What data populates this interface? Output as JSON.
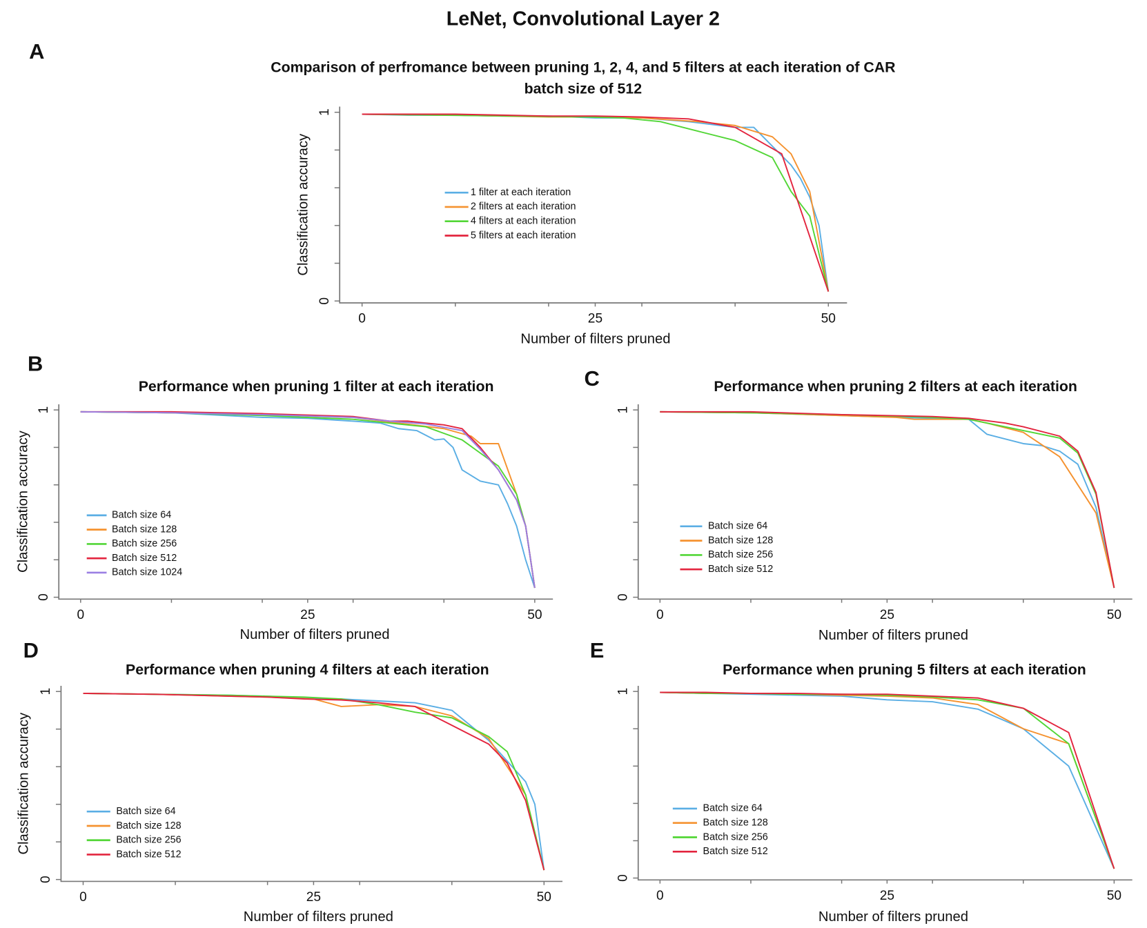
{
  "title": "LeNet, Convolutional Layer 2",
  "chart_data": [
    {
      "type": "line",
      "panel": "A",
      "title": "Comparison of perfromance between pruning 1, 2, 4, and 5 filters at each iteration of CAR",
      "subtitle": "batch size of 512",
      "xlabel": "Number of filters pruned",
      "ylabel": "Classification accuracy",
      "xlim": [
        -2.4,
        52
      ],
      "ylim": [
        -0.01,
        1.03
      ],
      "xticks": [
        0,
        25,
        50
      ],
      "yticks": [
        0,
        1
      ],
      "xticks_minor": [
        10,
        20,
        30,
        40
      ],
      "yticks_minor": [
        0.2,
        0.4,
        0.6,
        0.8
      ],
      "series": [
        {
          "name": "1 filter at each iteration",
          "color": "#5aaee4",
          "x": [
            0,
            5,
            10,
            15,
            20,
            25,
            30,
            35,
            40,
            42,
            44,
            46,
            47,
            48,
            49,
            50
          ],
          "values": [
            0.99,
            0.985,
            0.985,
            0.98,
            0.98,
            0.97,
            0.97,
            0.95,
            0.92,
            0.92,
            0.82,
            0.72,
            0.65,
            0.55,
            0.4,
            0.05
          ]
        },
        {
          "name": "2 filters at each iteration",
          "color": "#f5922f",
          "x": [
            0,
            10,
            20,
            26,
            30,
            36,
            40,
            44,
            46,
            48,
            50
          ],
          "values": [
            0.99,
            0.985,
            0.975,
            0.975,
            0.97,
            0.95,
            0.93,
            0.87,
            0.78,
            0.58,
            0.05
          ]
        },
        {
          "name": "4 filters at each iteration",
          "color": "#52d636",
          "x": [
            0,
            8,
            16,
            24,
            28,
            32,
            36,
            40,
            44,
            46,
            48,
            50
          ],
          "values": [
            0.99,
            0.985,
            0.98,
            0.975,
            0.97,
            0.95,
            0.9,
            0.85,
            0.76,
            0.58,
            0.45,
            0.05
          ]
        },
        {
          "name": "5 filters at each iteration",
          "color": "#e3243e",
          "x": [
            0,
            5,
            10,
            15,
            20,
            25,
            30,
            35,
            40,
            45,
            50
          ],
          "values": [
            0.99,
            0.99,
            0.99,
            0.985,
            0.98,
            0.98,
            0.975,
            0.965,
            0.92,
            0.78,
            0.05
          ]
        }
      ]
    },
    {
      "type": "line",
      "panel": "B",
      "title": "Performance when pruning 1 filter at each iteration",
      "xlabel": "Number of filters pruned",
      "ylabel": "Classification accuracy",
      "xlim": [
        -2.4,
        52
      ],
      "ylim": [
        -0.01,
        1.03
      ],
      "xticks": [
        0,
        25,
        50
      ],
      "yticks": [
        0,
        1
      ],
      "xticks_minor": [
        10,
        20,
        30,
        40
      ],
      "yticks_minor": [
        0.2,
        0.4,
        0.6,
        0.8
      ],
      "series": [
        {
          "name": "Batch size 64",
          "color": "#5aaee4",
          "x": [
            0,
            10,
            20,
            25,
            30,
            33,
            35,
            37,
            39,
            40,
            41,
            42,
            44,
            46,
            47,
            48,
            49,
            50
          ],
          "values": [
            0.99,
            0.985,
            0.96,
            0.955,
            0.94,
            0.93,
            0.9,
            0.89,
            0.84,
            0.845,
            0.8,
            0.68,
            0.62,
            0.6,
            0.5,
            0.38,
            0.2,
            0.05
          ]
        },
        {
          "name": "Batch size 128",
          "color": "#f5922f",
          "x": [
            0,
            10,
            20,
            30,
            35,
            40,
            43,
            44,
            45,
            46,
            48,
            49,
            50
          ],
          "values": [
            0.99,
            0.985,
            0.975,
            0.96,
            0.93,
            0.9,
            0.86,
            0.82,
            0.82,
            0.82,
            0.55,
            0.38,
            0.05
          ]
        },
        {
          "name": "Batch size 256",
          "color": "#52d636",
          "x": [
            0,
            10,
            20,
            30,
            34,
            38,
            42,
            44,
            46,
            48,
            49,
            50
          ],
          "values": [
            0.99,
            0.985,
            0.97,
            0.95,
            0.93,
            0.91,
            0.84,
            0.77,
            0.7,
            0.55,
            0.38,
            0.05
          ]
        },
        {
          "name": "Batch size 512",
          "color": "#e3243e",
          "x": [
            0,
            10,
            20,
            30,
            34,
            36,
            38,
            40,
            42,
            44,
            46,
            48,
            49,
            50
          ],
          "values": [
            0.99,
            0.99,
            0.98,
            0.965,
            0.94,
            0.94,
            0.93,
            0.92,
            0.9,
            0.8,
            0.68,
            0.52,
            0.38,
            0.05
          ]
        },
        {
          "name": "Batch size 1024",
          "color": "#9a7fe3",
          "x": [
            0,
            10,
            20,
            30,
            34,
            38,
            42,
            44,
            46,
            48,
            49,
            50
          ],
          "values": [
            0.99,
            0.985,
            0.975,
            0.96,
            0.94,
            0.925,
            0.89,
            0.79,
            0.68,
            0.52,
            0.38,
            0.05
          ]
        }
      ]
    },
    {
      "type": "line",
      "panel": "C",
      "title": "Performance when pruning 2 filters at each iteration",
      "xlabel": "Number of filters pruned",
      "xlim": [
        -2.4,
        52
      ],
      "ylim": [
        -0.01,
        1.03
      ],
      "xticks": [
        0,
        25,
        50
      ],
      "yticks": [
        0,
        1
      ],
      "xticks_minor": [
        10,
        20,
        30,
        40
      ],
      "yticks_minor": [
        0.2,
        0.4,
        0.6,
        0.8
      ],
      "series": [
        {
          "name": "Batch size 64",
          "color": "#5aaee4",
          "x": [
            0,
            10,
            20,
            30,
            34,
            36,
            40,
            42,
            44,
            46,
            48,
            50
          ],
          "values": [
            0.99,
            0.985,
            0.97,
            0.955,
            0.95,
            0.87,
            0.82,
            0.81,
            0.78,
            0.71,
            0.48,
            0.05
          ]
        },
        {
          "name": "Batch size 128",
          "color": "#f5922f",
          "x": [
            0,
            10,
            20,
            26,
            28,
            34,
            36,
            40,
            44,
            48,
            50
          ],
          "values": [
            0.99,
            0.985,
            0.97,
            0.96,
            0.95,
            0.95,
            0.93,
            0.88,
            0.75,
            0.45,
            0.05
          ]
        },
        {
          "name": "Batch size 256",
          "color": "#52d636",
          "x": [
            0,
            10,
            20,
            30,
            34,
            40,
            44,
            46,
            48,
            50
          ],
          "values": [
            0.99,
            0.985,
            0.975,
            0.96,
            0.95,
            0.89,
            0.85,
            0.77,
            0.55,
            0.05
          ]
        },
        {
          "name": "Batch size 512",
          "color": "#e3243e",
          "x": [
            0,
            10,
            20,
            30,
            34,
            38,
            40,
            44,
            46,
            48,
            50
          ],
          "values": [
            0.99,
            0.99,
            0.975,
            0.965,
            0.955,
            0.93,
            0.91,
            0.86,
            0.78,
            0.56,
            0.05
          ]
        }
      ]
    },
    {
      "type": "line",
      "panel": "D",
      "title": "Performance when pruning 4 filters at each iteration",
      "xlabel": "Number of filters pruned",
      "ylabel": "Classification accuracy",
      "xlim": [
        -2.4,
        52
      ],
      "ylim": [
        -0.01,
        1.03
      ],
      "xticks": [
        0,
        25,
        50
      ],
      "yticks": [
        0,
        1
      ],
      "xticks_minor": [
        10,
        20,
        30,
        40
      ],
      "yticks_minor": [
        0.2,
        0.4,
        0.6,
        0.8
      ],
      "series": [
        {
          "name": "Batch size 64",
          "color": "#5aaee4",
          "x": [
            0,
            8,
            16,
            20,
            24,
            28,
            32,
            36,
            40,
            44,
            48,
            49,
            50
          ],
          "values": [
            0.99,
            0.985,
            0.98,
            0.975,
            0.965,
            0.96,
            0.95,
            0.94,
            0.9,
            0.74,
            0.52,
            0.4,
            0.05
          ]
        },
        {
          "name": "Batch size 128",
          "color": "#f5922f",
          "x": [
            0,
            8,
            16,
            20,
            25,
            28,
            32,
            36,
            40,
            44,
            48,
            50
          ],
          "values": [
            0.99,
            0.985,
            0.975,
            0.97,
            0.96,
            0.92,
            0.93,
            0.92,
            0.87,
            0.75,
            0.45,
            0.05
          ]
        },
        {
          "name": "Batch size 256",
          "color": "#52d636",
          "x": [
            0,
            8,
            16,
            20,
            24,
            28,
            32,
            36,
            40,
            44,
            46,
            48,
            50
          ],
          "values": [
            0.99,
            0.985,
            0.98,
            0.975,
            0.97,
            0.96,
            0.93,
            0.89,
            0.86,
            0.76,
            0.68,
            0.45,
            0.05
          ]
        },
        {
          "name": "Batch size 512",
          "color": "#e3243e",
          "x": [
            0,
            8,
            16,
            20,
            24,
            28,
            32,
            36,
            40,
            44,
            46,
            48,
            50
          ],
          "values": [
            0.99,
            0.985,
            0.975,
            0.97,
            0.96,
            0.955,
            0.94,
            0.92,
            0.82,
            0.72,
            0.62,
            0.42,
            0.05
          ]
        }
      ]
    },
    {
      "type": "line",
      "panel": "E",
      "title": "Performance when pruning 5 filters at each iteration",
      "xlabel": "Number of filters pruned",
      "xlim": [
        -2.4,
        52
      ],
      "ylim": [
        -0.01,
        1.03
      ],
      "xticks": [
        0,
        25,
        50
      ],
      "yticks": [
        0,
        1
      ],
      "xticks_minor": [
        10,
        20,
        30,
        40
      ],
      "yticks_minor": [
        0.2,
        0.4,
        0.6,
        0.8
      ],
      "series": [
        {
          "name": "Batch size 64",
          "color": "#5aaee4",
          "x": [
            0,
            5,
            10,
            15,
            20,
            25,
            30,
            35,
            40,
            45,
            50
          ],
          "values": [
            0.995,
            0.99,
            0.985,
            0.98,
            0.975,
            0.955,
            0.945,
            0.905,
            0.8,
            0.6,
            0.05
          ]
        },
        {
          "name": "Batch size 128",
          "color": "#f5922f",
          "x": [
            0,
            5,
            10,
            15,
            20,
            25,
            30,
            35,
            40,
            45,
            50
          ],
          "values": [
            0.995,
            0.99,
            0.99,
            0.985,
            0.98,
            0.975,
            0.965,
            0.93,
            0.8,
            0.72,
            0.05
          ]
        },
        {
          "name": "Batch size 256",
          "color": "#52d636",
          "x": [
            0,
            5,
            10,
            15,
            20,
            25,
            30,
            35,
            40,
            45,
            50
          ],
          "values": [
            0.995,
            0.99,
            0.99,
            0.985,
            0.985,
            0.98,
            0.97,
            0.955,
            0.91,
            0.72,
            0.05
          ]
        },
        {
          "name": "Batch size 512",
          "color": "#e3243e",
          "x": [
            0,
            5,
            10,
            15,
            20,
            25,
            30,
            35,
            40,
            45,
            50
          ],
          "values": [
            0.995,
            0.995,
            0.99,
            0.99,
            0.985,
            0.985,
            0.975,
            0.965,
            0.91,
            0.78,
            0.05
          ]
        }
      ]
    }
  ]
}
